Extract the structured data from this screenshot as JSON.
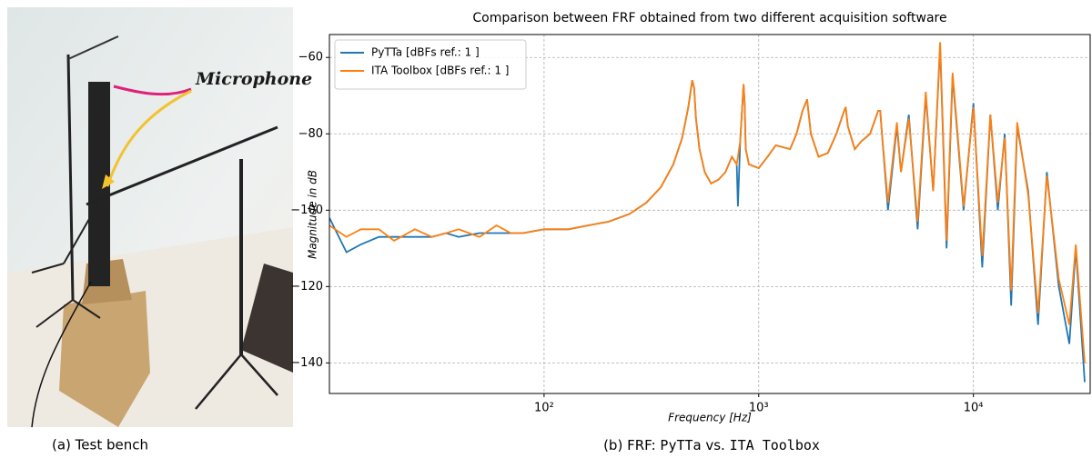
{
  "figure": {
    "panel_a": {
      "annotation": "Microphone",
      "caption": "(a) Test bench"
    },
    "panel_b": {
      "caption_parts": [
        "(b) FRF: ",
        "PyTTa",
        " vs. ",
        "ITA Toolbox"
      ]
    }
  },
  "chart_data": {
    "type": "line",
    "title": "Comparison between FRF obtained from two different acquisition software",
    "x_label": "Frequency [Hz]",
    "y_label": "Magnitude in dB",
    "x_log": true,
    "grid": true,
    "legend": "upper left",
    "xlim": [
      10,
      35000
    ],
    "ylim": [
      -148,
      -54
    ],
    "xticks": [
      {
        "value": 100,
        "label": "10²"
      },
      {
        "value": 1000,
        "label": "10³"
      },
      {
        "value": 10000,
        "label": "10⁴"
      }
    ],
    "yticks": [
      {
        "value": -60,
        "label": "−60"
      },
      {
        "value": -80,
        "label": "−80"
      },
      {
        "value": -100,
        "label": "−100"
      },
      {
        "value": -120,
        "label": "−120"
      },
      {
        "value": -140,
        "label": "−140"
      }
    ],
    "x": [
      10,
      12,
      14,
      17,
      20,
      25,
      30,
      35,
      40,
      50,
      60,
      70,
      80,
      100,
      130,
      160,
      200,
      250,
      300,
      350,
      400,
      440,
      470,
      490,
      500,
      510,
      530,
      560,
      600,
      650,
      700,
      750,
      790,
      800,
      820,
      850,
      860,
      870,
      900,
      1000,
      1100,
      1200,
      1400,
      1500,
      1600,
      1680,
      1750,
      1900,
      2100,
      2300,
      2500,
      2540,
      2600,
      2800,
      3000,
      3300,
      3600,
      3680,
      3750,
      4000,
      4400,
      4600,
      5000,
      5500,
      6000,
      6500,
      7000,
      7500,
      8000,
      9000,
      10000,
      11000,
      12000,
      13000,
      14000,
      15000,
      16000,
      18000,
      20000,
      22000,
      25000,
      28000,
      30000,
      33000
    ],
    "series": [
      {
        "name": "PyTTa [dBFs ref.: 1 ]",
        "color": "#1f77b4",
        "values": [
          -102,
          -111,
          -109,
          -107,
          -107,
          -107,
          -107,
          -106,
          -107,
          -106,
          -106,
          -106,
          -106,
          -105,
          -105,
          -104,
          -103,
          -101,
          -98,
          -94,
          -88,
          -81,
          -73,
          -66,
          -68,
          -76,
          -84,
          -90,
          -93,
          -92,
          -90,
          -86,
          -88,
          -99,
          -82,
          -67,
          -72,
          -84,
          -88,
          -89,
          -86,
          -83,
          -84,
          -80,
          -74,
          -71,
          -80,
          -86,
          -85,
          -80,
          -74,
          -73,
          -78,
          -84,
          -82,
          -80,
          -74,
          -74,
          -80,
          -100,
          -78,
          -90,
          -75,
          -105,
          -70,
          -95,
          -57,
          -110,
          -65,
          -100,
          -72,
          -115,
          -75,
          -100,
          -80,
          -125,
          -78,
          -95,
          -130,
          -90,
          -120,
          -135,
          -110,
          -145
        ]
      },
      {
        "name": "ITA Toolbox [dBFs ref.: 1 ]",
        "color": "#ff7f0e",
        "values": [
          -104,
          -107,
          -105,
          -105,
          -108,
          -105,
          -107,
          -106,
          -105,
          -107,
          -104,
          -106,
          -106,
          -105,
          -105,
          -104,
          -103,
          -101,
          -98,
          -94,
          -88,
          -81,
          -73,
          -66,
          -68,
          -76,
          -84,
          -90,
          -93,
          -92,
          -90,
          -86,
          -88,
          -86,
          -82,
          -67,
          -72,
          -84,
          -88,
          -89,
          -86,
          -83,
          -84,
          -80,
          -74,
          -71,
          -80,
          -86,
          -85,
          -80,
          -74,
          -73,
          -78,
          -84,
          -82,
          -80,
          -74,
          -74,
          -80,
          -98,
          -77,
          -90,
          -76,
          -103,
          -69,
          -95,
          -56,
          -108,
          -64,
          -99,
          -73,
          -112,
          -75,
          -98,
          -81,
          -121,
          -77,
          -96,
          -127,
          -91,
          -118,
          -130,
          -109,
          -140
        ]
      }
    ]
  }
}
